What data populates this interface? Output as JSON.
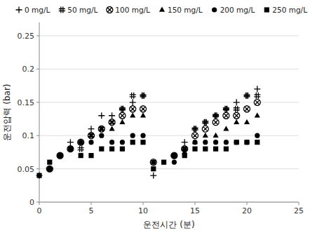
{
  "chart_data": {
    "type": "scatter",
    "x_label": "운전시간 (분)",
    "y_label": "운전압력 (bar)",
    "xlim": [
      0,
      25
    ],
    "ylim": [
      0,
      0.27
    ],
    "xticks": [
      0,
      5,
      10,
      15,
      20,
      25
    ],
    "yticks": [
      0,
      0.05,
      0.1,
      0.15,
      0.2,
      0.25
    ],
    "grid": true,
    "legend": "upper left",
    "series": [
      {
        "name": "0 mg/L",
        "color": "#000000",
        "marker": "plus",
        "x": [
          0,
          1,
          2,
          3,
          4,
          5,
          6,
          7,
          8,
          9,
          10,
          11,
          13,
          14,
          15,
          16,
          17,
          18,
          19,
          20,
          21
        ],
        "values": [
          0.04,
          0.05,
          0.07,
          0.09,
          0.09,
          0.11,
          0.13,
          0.13,
          0.14,
          0.15,
          0.16,
          0.04,
          0.07,
          0.09,
          0.11,
          0.12,
          0.13,
          0.14,
          0.15,
          0.16,
          0.17
        ]
      },
      {
        "name": "50 mg/L",
        "color": "#000000",
        "marker": "hash",
        "x": [
          1,
          2,
          3,
          4,
          5,
          6,
          7,
          8,
          9,
          10,
          13,
          14,
          15,
          16,
          17,
          18,
          19,
          20,
          21
        ],
        "values": [
          0.05,
          0.07,
          0.08,
          0.08,
          0.1,
          0.11,
          0.12,
          0.14,
          0.16,
          0.16,
          0.07,
          0.08,
          0.11,
          0.12,
          0.13,
          0.14,
          0.14,
          0.16,
          0.16
        ]
      },
      {
        "name": "100 mg/L",
        "color": "#000000",
        "marker": "circle-x",
        "x": [
          1,
          2,
          3,
          4,
          5,
          6,
          7,
          8,
          9,
          10,
          11,
          13,
          14,
          15,
          16,
          17,
          18,
          19,
          20,
          21
        ],
        "values": [
          0.05,
          0.07,
          0.08,
          0.09,
          0.1,
          0.11,
          0.12,
          0.13,
          0.14,
          0.14,
          0.06,
          0.07,
          0.08,
          0.1,
          0.11,
          0.12,
          0.13,
          0.13,
          0.14,
          0.15
        ]
      },
      {
        "name": "150 mg/L",
        "color": "#000000",
        "marker": "triangle",
        "x": [
          1,
          2,
          3,
          4,
          5,
          6,
          7,
          8,
          9,
          10,
          13,
          14,
          15,
          16,
          17,
          18,
          19,
          20,
          21
        ],
        "values": [
          0.05,
          0.07,
          0.08,
          0.09,
          0.1,
          0.11,
          0.11,
          0.12,
          0.13,
          0.13,
          0.07,
          0.075,
          0.09,
          0.1,
          0.1,
          0.11,
          0.12,
          0.12,
          0.13
        ]
      },
      {
        "name": "200 mg/L",
        "color": "#000000",
        "marker": "circle",
        "x": [
          1,
          2,
          3,
          4,
          5,
          6,
          7,
          8,
          9,
          10,
          11,
          13,
          14,
          15,
          16,
          17,
          18,
          19,
          20,
          21
        ],
        "values": [
          0.05,
          0.07,
          0.08,
          0.09,
          0.09,
          0.1,
          0.09,
          0.09,
          0.1,
          0.1,
          0.06,
          0.06,
          0.08,
          0.09,
          0.09,
          0.09,
          0.09,
          0.09,
          0.09,
          0.1
        ]
      },
      {
        "name": "250 mg/L",
        "color": "#000000",
        "marker": "square",
        "x": [
          0,
          1,
          2,
          3,
          4,
          5,
          6,
          7,
          8,
          9,
          10,
          11,
          12,
          13,
          14,
          15,
          16,
          17,
          18,
          19,
          20,
          21
        ],
        "values": [
          0.04,
          0.06,
          0.07,
          0.08,
          0.07,
          0.07,
          0.08,
          0.08,
          0.08,
          0.09,
          0.09,
          0.05,
          0.06,
          0.07,
          0.07,
          0.08,
          0.08,
          0.08,
          0.08,
          0.09,
          0.09,
          0.09
        ]
      }
    ]
  }
}
